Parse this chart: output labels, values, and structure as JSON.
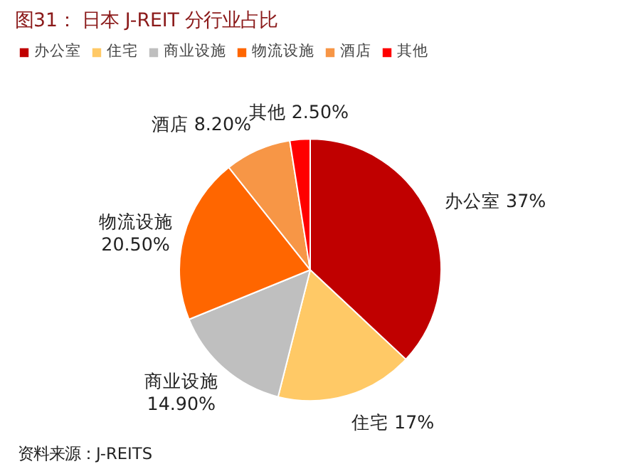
{
  "chart_data": {
    "type": "pie",
    "title": "图31： 日本 J-REIT 分行业占比",
    "categories": [
      "办公室",
      "住宅",
      "商业设施",
      "物流设施",
      "酒店",
      "其他"
    ],
    "values": [
      37,
      17,
      14.9,
      20.5,
      8.2,
      2.5
    ],
    "colors": [
      "#c00000",
      "#ffc966",
      "#bfbfbf",
      "#ff6600",
      "#f79646",
      "#ff0000"
    ],
    "value_labels": [
      "37%",
      "17%",
      "14.90%",
      "20.50%",
      "8.20%",
      "2.50%"
    ],
    "legend": "top",
    "annotations": [
      "资料来源：J-REITS"
    ]
  }
}
